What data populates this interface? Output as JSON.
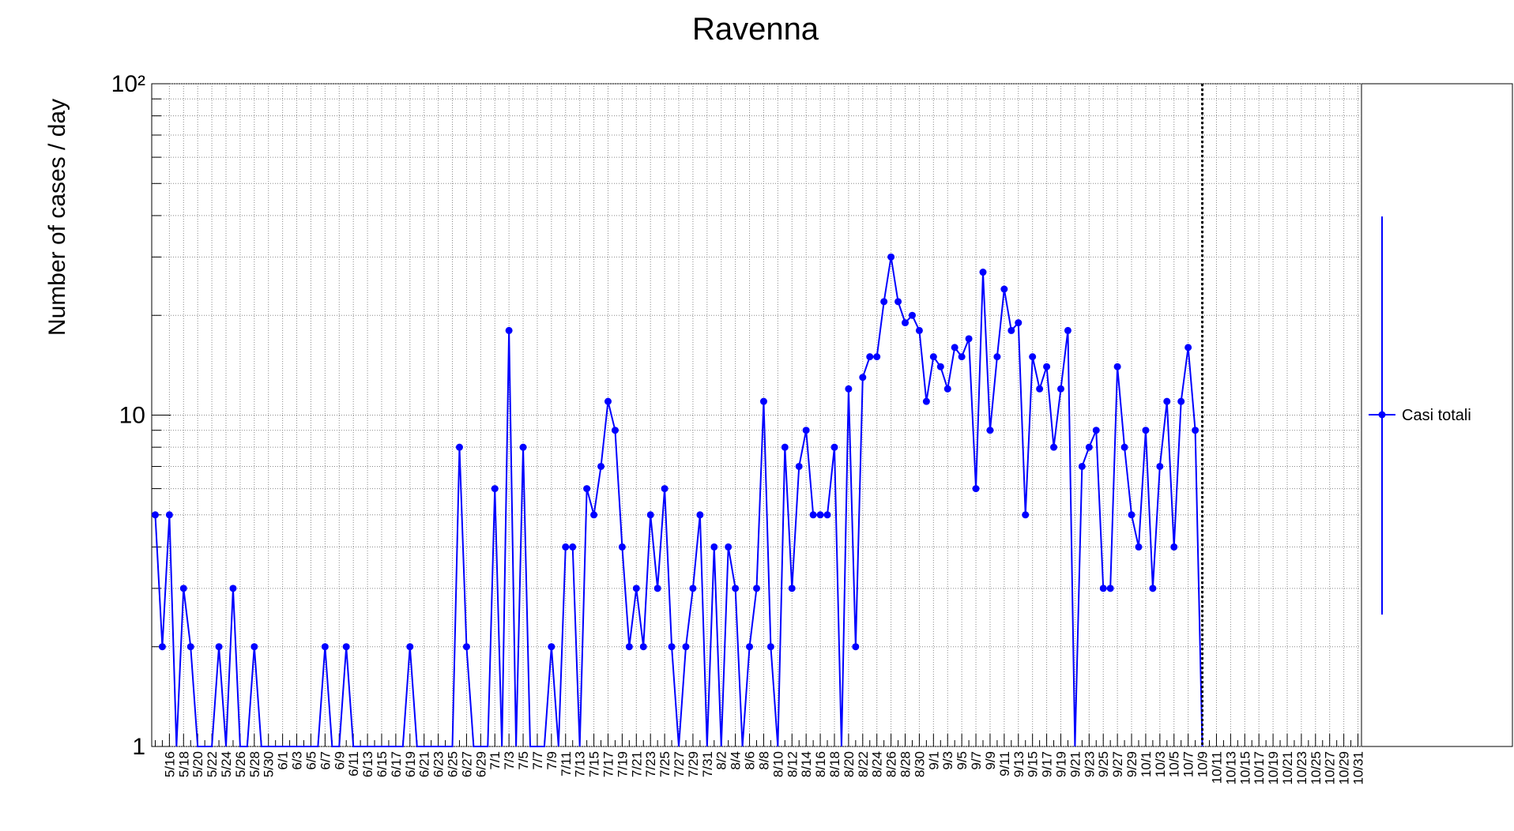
{
  "chart_data": {
    "type": "line",
    "title": "Ravenna",
    "y_label": "Number of cases / day",
    "categories": [
      null,
      null,
      "5/16",
      null,
      "5/18",
      null,
      "5/20",
      null,
      "5/22",
      null,
      "5/24",
      null,
      "5/26",
      null,
      "5/28",
      null,
      "5/30",
      null,
      "6/1",
      null,
      "6/3",
      null,
      "6/5",
      null,
      "6/7",
      null,
      "6/9",
      null,
      "6/11",
      null,
      "6/13",
      null,
      "6/15",
      null,
      "6/17",
      null,
      "6/19",
      null,
      "6/21",
      null,
      "6/23",
      null,
      "6/25",
      null,
      "6/27",
      null,
      "6/29",
      null,
      "7/1",
      null,
      "7/3",
      null,
      "7/5",
      null,
      "7/7",
      null,
      "7/9",
      null,
      "7/11",
      null,
      "7/13",
      null,
      "7/15",
      null,
      "7/17",
      null,
      "7/19",
      null,
      "7/21",
      null,
      "7/23",
      null,
      "7/25",
      null,
      "7/27",
      null,
      "7/29",
      null,
      "7/31",
      null,
      "8/2",
      null,
      "8/4",
      null,
      "8/6",
      null,
      "8/8",
      null,
      "8/10",
      null,
      "8/12",
      null,
      "8/14",
      null,
      "8/16",
      null,
      "8/18",
      null,
      "8/20",
      null,
      "8/22",
      null,
      "8/24",
      null,
      "8/26",
      null,
      "8/28",
      null,
      "8/30",
      null,
      "9/1",
      null,
      "9/3",
      null,
      "9/5",
      null,
      "9/7",
      null,
      "9/9",
      null,
      "9/11",
      null,
      "9/13",
      null,
      "9/15",
      null,
      "9/17",
      null,
      "9/19",
      null,
      "9/21",
      null,
      "9/23",
      null,
      "9/25",
      null,
      "9/27",
      null,
      "9/29",
      null,
      "10/1",
      null,
      "10/3",
      null,
      "10/5",
      null,
      "10/7",
      null,
      "10/9",
      null,
      "10/11",
      null,
      "10/13",
      null,
      "10/15",
      null,
      "10/17",
      null,
      "10/19",
      null,
      "10/21",
      null,
      "10/23",
      null,
      "10/25",
      null,
      "10/27",
      null,
      "10/29",
      null,
      "10/31"
    ],
    "series": [
      {
        "name": "Casi totali",
        "color": "#0000ff",
        "values": [
          5,
          2,
          5,
          0,
          3,
          2,
          0,
          0,
          0,
          2,
          0,
          3,
          0,
          0,
          2,
          0,
          0,
          0,
          0,
          0,
          0,
          0,
          0,
          0,
          2,
          0,
          0,
          2,
          0,
          0,
          0,
          0,
          0,
          0,
          0,
          0,
          2,
          0,
          0,
          0,
          0,
          0,
          0,
          8,
          2,
          0,
          0,
          0,
          6,
          0,
          18,
          0,
          8,
          0,
          0,
          0,
          2,
          0,
          4,
          4,
          0,
          6,
          5,
          7,
          11,
          9,
          4,
          2,
          3,
          2,
          5,
          3,
          6,
          2,
          0,
          2,
          3,
          5,
          0,
          4,
          0,
          4,
          3,
          0,
          2,
          3,
          11,
          2,
          0,
          8,
          3,
          7,
          9,
          5,
          5,
          5,
          8,
          0,
          12,
          2,
          13,
          15,
          15,
          22,
          30,
          22,
          19,
          20,
          18,
          11,
          15,
          14,
          12,
          16,
          15,
          17,
          6,
          27,
          9,
          15,
          24,
          18,
          19,
          5,
          15,
          12,
          14,
          8,
          12,
          18,
          0,
          7,
          8,
          9,
          3,
          3,
          14,
          8,
          5,
          4,
          9,
          3,
          7,
          11,
          4,
          11,
          16,
          9,
          0,
          null,
          null,
          null,
          null,
          null,
          null,
          null,
          null,
          null,
          null,
          null,
          null,
          null,
          null,
          null,
          null,
          null,
          null,
          null,
          null,
          null,
          null
        ]
      }
    ],
    "log_y": true,
    "ylim": [
      1,
      100
    ],
    "yticks": [
      1,
      10,
      {
        "value": 100,
        "label": "10²"
      }
    ],
    "grid": true
  }
}
